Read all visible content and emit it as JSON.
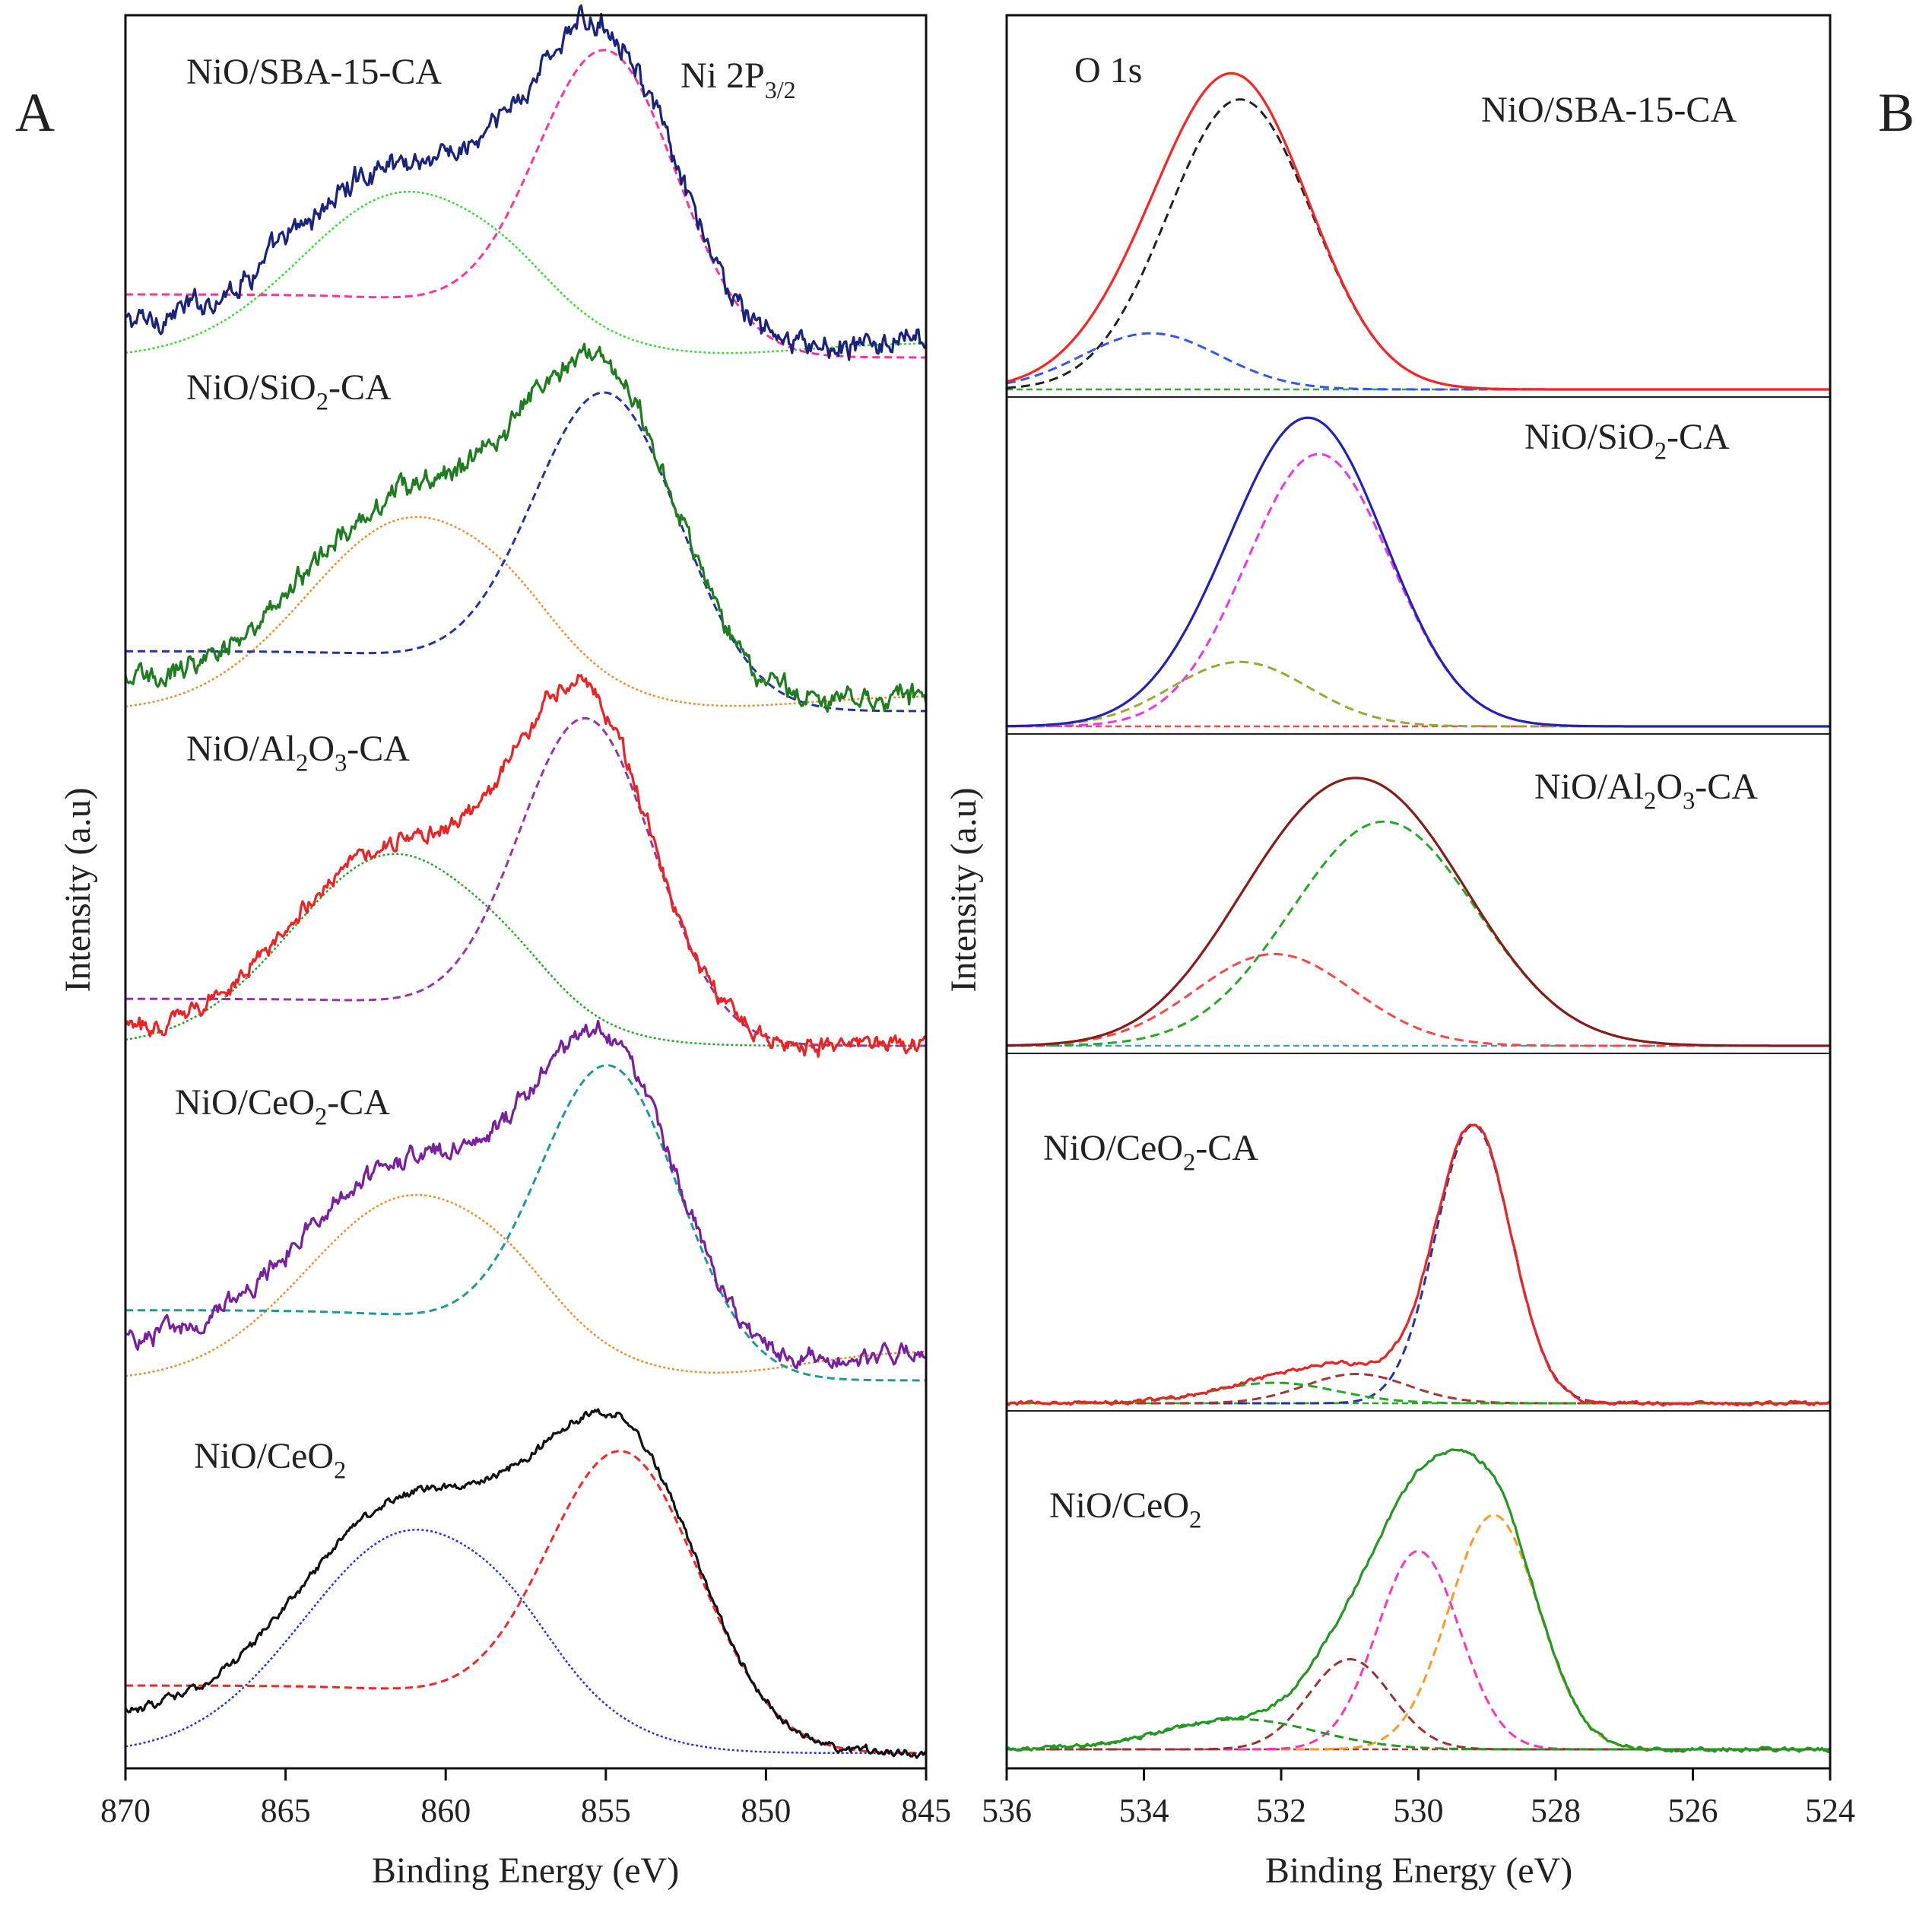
{
  "figure": {
    "panel_a_letter": "A",
    "panel_b_letter": "B"
  },
  "chart_data": [
    {
      "type": "line",
      "panel": "A",
      "title": "",
      "annotation": "Ni 2P3/2",
      "annotation_main": "Ni 2P",
      "annotation_sub": "3/2",
      "xlabel": "Binding Energy (eV)",
      "ylabel": "Intensity (a.u)",
      "xlim": [
        870,
        845
      ],
      "x_ticks": [
        "870",
        "865",
        "860",
        "855",
        "850",
        "845"
      ],
      "x_tick_values": [
        870,
        865,
        860,
        855,
        850,
        845
      ],
      "traces": [
        {
          "name": "NiO/SBA-15-CA",
          "label_parts": [
            [
              "NiO/SBA-15-CA",
              ""
            ]
          ],
          "baseline": 0.0,
          "noise": 0.018,
          "main_peak": {
            "center": 855.0,
            "height": 1.0,
            "width": 2.2
          },
          "satellite": {
            "center": 861.2,
            "height": 0.55,
            "width": 3.3
          },
          "start_offset": 0.1,
          "end_offset": 0.05,
          "colors": {
            "data": "#1a237e",
            "fit": "#ff3399",
            "sat_fit": "#33dd33",
            "bg": "#33dd33"
          }
        },
        {
          "name": "NiO/SiO2-CA",
          "label_parts": [
            [
              "NiO/SiO",
              ""
            ],
            [
              "2",
              "sub"
            ],
            [
              "-CA",
              ""
            ]
          ],
          "baseline": 0.0,
          "noise": 0.016,
          "main_peak": {
            "center": 855.0,
            "height": 1.0,
            "width": 2.3
          },
          "satellite": {
            "center": 861.0,
            "height": 0.62,
            "width": 3.3
          },
          "start_offset": 0.08,
          "end_offset": 0.05,
          "colors": {
            "data": "#1e7d1e",
            "fit": "#2233aa",
            "sat_fit": "#f28c28",
            "bg": "#f28c28"
          }
        },
        {
          "name": "NiO/Al2O3-CA",
          "label_parts": [
            [
              "NiO/Al",
              ""
            ],
            [
              "2",
              "sub"
            ],
            [
              "O",
              ""
            ],
            [
              "3",
              "sub"
            ],
            [
              "-CA",
              ""
            ]
          ],
          "baseline": 0.0,
          "noise": 0.012,
          "main_peak": {
            "center": 855.6,
            "height": 1.0,
            "width": 2.1
          },
          "satellite": {
            "center": 861.6,
            "height": 0.6,
            "width": 3.2
          },
          "start_offset": 0.03,
          "end_offset": 0.0,
          "colors": {
            "data": "#ee2222",
            "fit": "#9933aa",
            "sat_fit": "#22aa22",
            "bg": "#22aa22"
          }
        },
        {
          "name": "NiO/CeO2-CA",
          "label_parts": [
            [
              "NiO/CeO",
              ""
            ],
            [
              "2",
              "sub"
            ],
            [
              "-CA",
              ""
            ]
          ],
          "baseline": 0.0,
          "noise": 0.014,
          "main_peak": {
            "center": 854.9,
            "height": 1.0,
            "width": 2.2
          },
          "satellite": {
            "center": 861.0,
            "height": 0.6,
            "width": 3.3
          },
          "start_offset": 0.12,
          "end_offset": 0.1,
          "colors": {
            "data": "#7a1fa2",
            "fit": "#1a9a9a",
            "sat_fit": "#f28c28",
            "bg": "#f28c28"
          }
        },
        {
          "name": "NiO/CeO2",
          "label_parts": [
            [
              "NiO/CeO",
              ""
            ],
            [
              "2",
              "sub"
            ]
          ],
          "baseline": 0.0,
          "noise": 0.006,
          "main_peak": {
            "center": 854.5,
            "height": 1.0,
            "width": 2.4
          },
          "satellite": {
            "center": 861.0,
            "height": 0.75,
            "width": 3.4
          },
          "start_offset": 0.12,
          "end_offset": 0.0,
          "colors": {
            "data": "#111111",
            "fit": "#ff2222",
            "sat_fit": "#2233ee",
            "bg": "#2233ee"
          }
        }
      ]
    },
    {
      "type": "line",
      "panel": "B",
      "title": "",
      "annotation": "O 1s",
      "xlabel": "Binding Energy (eV)",
      "ylabel": "Intensity (a.u)",
      "xlim": [
        536,
        524
      ],
      "x_ticks": [
        "536",
        "534",
        "532",
        "530",
        "528",
        "526",
        "524"
      ],
      "x_tick_values": [
        536,
        534,
        532,
        530,
        528,
        526,
        524
      ],
      "traces": [
        {
          "name": "NiO/SBA-15-CA",
          "label_parts": [
            [
              "NiO/SBA-15-CA",
              ""
            ]
          ],
          "envelope_color": "#ff2222",
          "baseline_color": "#33aa33",
          "components": [
            {
              "center": 532.6,
              "height": 0.93,
              "width": 1.05,
              "color": "#222222"
            },
            {
              "center": 533.9,
              "height": 0.18,
              "width": 1.0,
              "color": "#3355ff"
            }
          ]
        },
        {
          "name": "NiO/SiO2-CA",
          "label_parts": [
            [
              "NiO/SiO",
              ""
            ],
            [
              "2",
              "sub"
            ],
            [
              "-CA",
              ""
            ]
          ],
          "envelope_color": "#2222bb",
          "baseline_color": "#ff4444",
          "components": [
            {
              "center": 531.45,
              "height": 0.93,
              "width": 1.05,
              "color": "#ee33ee"
            },
            {
              "center": 532.6,
              "height": 0.22,
              "width": 1.0,
              "color": "#99aa33"
            }
          ]
        },
        {
          "name": "NiO/Al2O3-CA",
          "label_parts": [
            [
              "NiO/Al",
              ""
            ],
            [
              "2",
              "sub"
            ],
            [
              "O",
              ""
            ],
            [
              "3",
              "sub"
            ],
            [
              "-CA",
              ""
            ]
          ],
          "envelope_color": "#8b1a1a",
          "baseline_color": "#33aabb",
          "components": [
            {
              "center": 530.5,
              "height": 0.88,
              "width": 1.35,
              "color": "#22aa22"
            },
            {
              "center": 532.1,
              "height": 0.36,
              "width": 1.15,
              "color": "#ff4444"
            }
          ]
        },
        {
          "name": "NiO/CeO2-CA",
          "label_parts": [
            [
              "NiO/CeO",
              ""
            ],
            [
              "2",
              "sub"
            ],
            [
              "-CA",
              ""
            ]
          ],
          "envelope_color": "#ee2222",
          "baseline_color": "#22aa22",
          "components": [
            {
              "center": 529.2,
              "height": 0.95,
              "width": 0.55,
              "color": "#2233aa"
            },
            {
              "center": 530.9,
              "height": 0.1,
              "width": 0.75,
              "color": "#aa3333"
            },
            {
              "center": 532.1,
              "height": 0.07,
              "width": 0.9,
              "color": "#22aa22"
            }
          ]
        },
        {
          "name": "NiO/CeO2",
          "label_parts": [
            [
              "NiO/CeO",
              ""
            ],
            [
              "2",
              "sub"
            ]
          ],
          "envelope_color": "#229922",
          "baseline_color": "#aa3333",
          "components": [
            {
              "center": 528.9,
              "height": 0.78,
              "width": 0.65,
              "color": "#ff9922"
            },
            {
              "center": 530.0,
              "height": 0.66,
              "width": 0.6,
              "color": "#ff33bb"
            },
            {
              "center": 531.0,
              "height": 0.3,
              "width": 0.6,
              "color": "#993333"
            },
            {
              "center": 532.6,
              "height": 0.1,
              "width": 1.1,
              "color": "#229922"
            }
          ]
        }
      ]
    }
  ]
}
